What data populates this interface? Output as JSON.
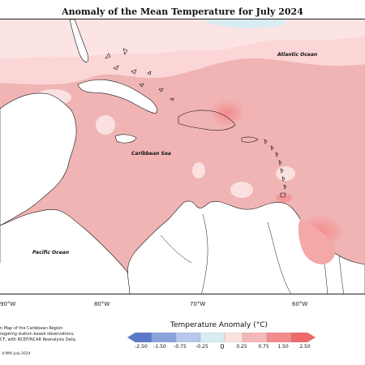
{
  "map": {
    "title": "Anomaly of the Mean Temperature for July 2024",
    "ocean_labels": {
      "atlantic": "Atlantic Ocean",
      "caribbean": "Caribbean Sea",
      "pacific": "Pacific Ocean"
    },
    "longitude_labels": [
      "90°W",
      "80°W",
      "70°W",
      "60°W"
    ],
    "footnote_lines": [
      "n Map of the Caribbean Region",
      "regating station based observations,",
      "CF, with NCEP/NCAR Reanalysis Data."
    ],
    "credit": "©IMH July-2024",
    "colors": {
      "ocean_base": "#f0b4b4",
      "anomaly_low": "#fcdcdc",
      "anomaly_high": "#f58a8a",
      "cool_patch": "#d8ecf2",
      "land": "#ffffff",
      "coastline": "#111111"
    }
  },
  "legend": {
    "title": "Temperature Anomaly (°C)",
    "labels": [
      "-2.50",
      "-1.50",
      "-0.75",
      "-0.25",
      "0",
      "0.25",
      "0.75",
      "1.50",
      "2.50"
    ],
    "colors": [
      "#5a78c8",
      "#8aa3dc",
      "#b8c8ec",
      "#d8ecf2",
      "#ffffff",
      "#fce0e0",
      "#f5b8b8",
      "#f28c8c",
      "#ee6a6a"
    ]
  }
}
